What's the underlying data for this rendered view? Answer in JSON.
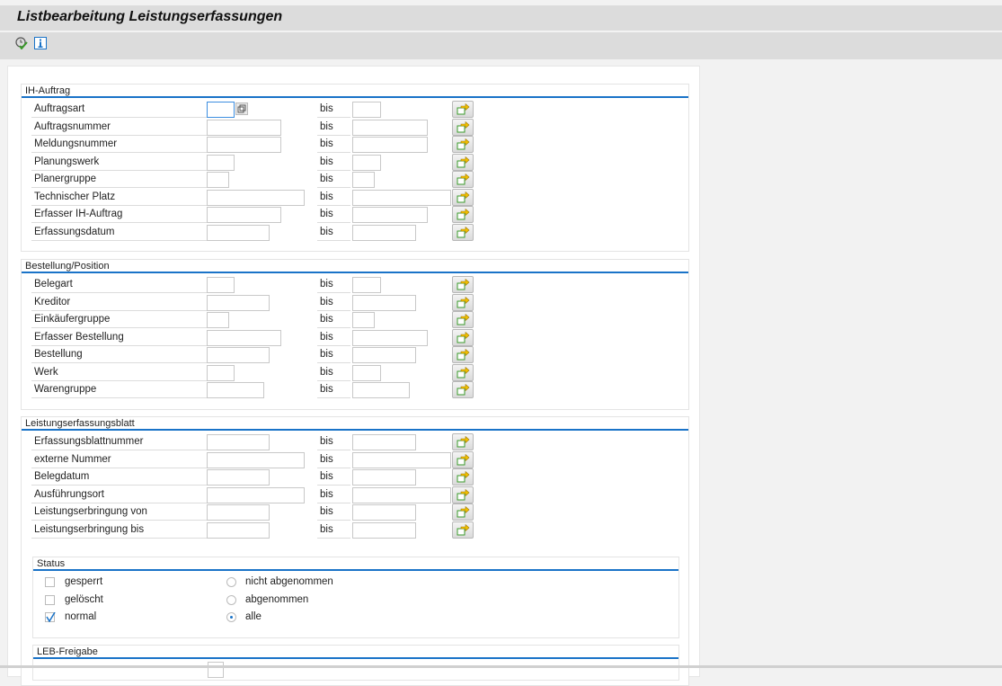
{
  "title": "Listbearbeitung Leistungserfassungen",
  "toolbar": {
    "icons": [
      "execute-icon",
      "info-icon"
    ]
  },
  "bis_label": "bis",
  "groups": [
    {
      "title": "IH-Auftrag",
      "rows": [
        "Auftragsart",
        "Auftragsnummer",
        "Meldungsnummer",
        "Planungswerk",
        "Planergruppe",
        "Technischer Platz",
        "Erfasser IH-Auftrag",
        "Erfassungsdatum"
      ]
    },
    {
      "title": "Bestellung/Position",
      "rows": [
        "Belegart",
        "Kreditor",
        "Einkäufergruppe",
        "Erfasser Bestellung",
        "Bestellung",
        "Werk",
        "Warengruppe"
      ]
    },
    {
      "title": "Leistungserfassungsblatt",
      "rows": [
        "Erfassungsblattnummer",
        "externe Nummer",
        "Belegdatum",
        "Ausführungsort",
        "Leistungserbringung von",
        "Leistungserbringung bis"
      ]
    }
  ],
  "status": {
    "title": "Status",
    "checkboxes": [
      {
        "label": "gesperrt",
        "checked": false
      },
      {
        "label": "gelöscht",
        "checked": false
      },
      {
        "label": "normal",
        "checked": true
      }
    ],
    "radios": [
      {
        "label": "nicht abgenommen",
        "selected": false
      },
      {
        "label": "abgenommen",
        "selected": false
      },
      {
        "label": "alle",
        "selected": true
      }
    ]
  },
  "leb": {
    "title": "LEB-Freigabe"
  },
  "colors": {
    "accent": "#1a73c8",
    "header_bg": "#dcdcdc"
  }
}
